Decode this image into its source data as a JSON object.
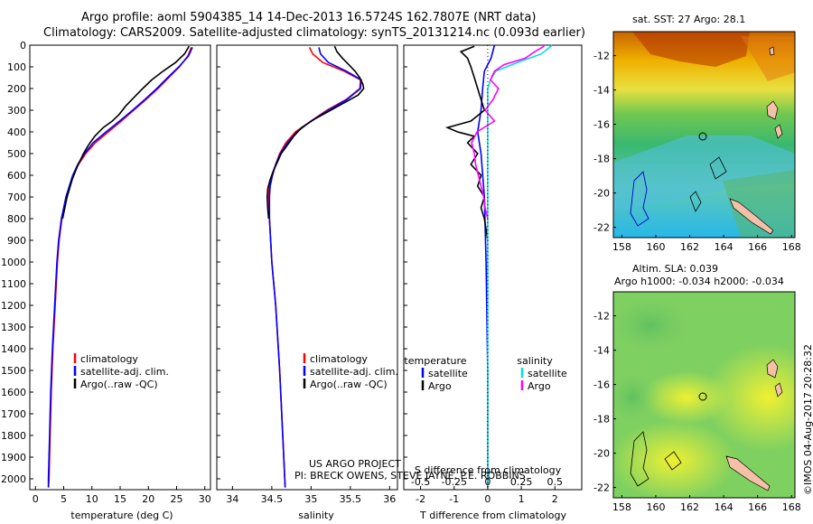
{
  "header": {
    "title_line1": "Argo profile: aoml 5904385_14 14-Dec-2013 16.5724S 162.7807E (NRT data)",
    "title_line2": "Climatology: CARS2009. Satellite-adjusted climatology: synTS_20131214.nc (0.093d earlier)"
  },
  "credits": {
    "project": "US ARGO PROJECT",
    "pi": "PI: BRECK OWENS, STEVE JAYNE, P.E. ROBBINS"
  },
  "timestamp": "©IMOS 04-Aug-2017 20:28:32",
  "colors": {
    "climatology": "#ff0000",
    "satellite": "#0000ff",
    "argo": "#000000",
    "salinity_satellite": "#00e0e0",
    "salinity_argo": "#ff00ff",
    "land": "#f4c0a8"
  },
  "chart_data": [
    {
      "id": "temperature",
      "type": "line",
      "xlabel": "temperature (deg C)",
      "ylabel": "",
      "xlim": [
        -1,
        31
      ],
      "ylim": [
        2050,
        0
      ],
      "xticks": [
        0,
        5,
        10,
        15,
        20,
        25,
        30
      ],
      "yticks": [
        0,
        100,
        200,
        300,
        400,
        500,
        600,
        700,
        800,
        900,
        1000,
        1100,
        1200,
        1300,
        1400,
        1500,
        1600,
        1700,
        1800,
        1900,
        2000
      ],
      "legend": [
        "climatology",
        "satellite-adj. clim.",
        "Argo(..raw -QC)"
      ],
      "legend_position": "lower-center",
      "series": [
        {
          "name": "climatology",
          "color": "#ff0000",
          "depth": [
            10,
            50,
            100,
            150,
            200,
            250,
            300,
            350,
            400,
            450,
            500,
            550,
            600,
            700,
            800,
            900,
            1000,
            1200,
            1400,
            1600,
            1800,
            2000,
            2040
          ],
          "values": [
            27.6,
            27.0,
            25.5,
            23.6,
            21.7,
            19.6,
            17.4,
            15.2,
            12.9,
            10.6,
            8.9,
            7.6,
            6.7,
            5.5,
            4.7,
            4.2,
            3.9,
            3.5,
            3.1,
            2.8,
            2.6,
            2.4,
            2.3
          ]
        },
        {
          "name": "satellite-adj. clim.",
          "color": "#0000ff",
          "depth": [
            10,
            50,
            100,
            150,
            200,
            250,
            300,
            350,
            400,
            450,
            500,
            550,
            600,
            700,
            800,
            900,
            1000,
            1200,
            1400,
            1600,
            1800,
            2000,
            2040
          ],
          "values": [
            27.8,
            27.1,
            25.4,
            23.4,
            21.5,
            19.4,
            17.2,
            14.9,
            12.5,
            10.2,
            8.7,
            7.5,
            6.6,
            5.4,
            4.6,
            4.1,
            3.8,
            3.4,
            3.0,
            2.7,
            2.5,
            2.3,
            2.3
          ]
        },
        {
          "name": "Argo(..raw -QC)",
          "color": "#000000",
          "depth": [
            5,
            40,
            80,
            120,
            160,
            200,
            240,
            280,
            320,
            350,
            380,
            420,
            460,
            500,
            560,
            620,
            700,
            800
          ],
          "values": [
            27.2,
            26.4,
            24.8,
            22.6,
            20.6,
            19.0,
            17.5,
            16.0,
            14.8,
            13.6,
            12.0,
            10.5,
            9.4,
            8.5,
            7.4,
            6.5,
            5.6,
            4.8
          ]
        }
      ]
    },
    {
      "id": "salinity",
      "type": "line",
      "xlabel": "salinity",
      "ylabel": "",
      "xlim": [
        33.8,
        36.1
      ],
      "ylim": [
        2050,
        0
      ],
      "xticks": [
        34,
        34.5,
        35,
        35.5,
        36
      ],
      "legend": [
        "climatology",
        "satellite-adj. clim.",
        "Argo(..raw -QC)"
      ],
      "legend_position": "lower-center",
      "series": [
        {
          "name": "climatology",
          "color": "#ff0000",
          "depth": [
            10,
            40,
            80,
            120,
            160,
            200,
            250,
            300,
            350,
            400,
            450,
            500,
            550,
            600,
            650,
            700,
            800,
            1000,
            1200,
            1500,
            1800,
            2040
          ],
          "values": [
            34.98,
            35.02,
            35.15,
            35.42,
            35.63,
            35.62,
            35.45,
            35.2,
            35.0,
            34.8,
            34.68,
            34.6,
            34.55,
            34.5,
            34.47,
            34.46,
            34.47,
            34.5,
            34.55,
            34.6,
            34.64,
            34.67
          ]
        },
        {
          "name": "satellite-adj. clim.",
          "color": "#0000ff",
          "depth": [
            10,
            40,
            80,
            120,
            160,
            200,
            250,
            300,
            350,
            400,
            450,
            500,
            550,
            600,
            650,
            700,
            800,
            1000,
            1200,
            1500,
            1800,
            2040
          ],
          "values": [
            35.1,
            35.12,
            35.22,
            35.45,
            35.64,
            35.63,
            35.46,
            35.22,
            35.0,
            34.82,
            34.7,
            34.61,
            34.55,
            34.51,
            34.48,
            34.47,
            34.47,
            34.5,
            34.55,
            34.6,
            34.64,
            34.67
          ]
        },
        {
          "name": "Argo(..raw -QC)",
          "color": "#000000",
          "depth": [
            5,
            30,
            60,
            90,
            120,
            150,
            180,
            200,
            230,
            260,
            300,
            340,
            380,
            420,
            460,
            500,
            540,
            580,
            620,
            660,
            700,
            760,
            800
          ],
          "values": [
            35.3,
            35.33,
            35.4,
            35.48,
            35.56,
            35.62,
            35.66,
            35.67,
            35.6,
            35.45,
            35.25,
            35.05,
            34.88,
            34.78,
            34.7,
            34.62,
            34.57,
            34.52,
            34.48,
            34.45,
            34.44,
            34.45,
            34.46
          ]
        }
      ]
    },
    {
      "id": "differences",
      "type": "line",
      "xlabel": "T difference from climatology",
      "xlabel_top": "S difference from climatology",
      "xlim": [
        -2.5,
        2.8
      ],
      "xticks": [
        -2,
        -1,
        0,
        1,
        2
      ],
      "s_xticks": [
        -0.5,
        -0.25,
        0,
        0.25,
        0.5
      ],
      "s_tick_labels": [
        "-0.5",
        "-0.25",
        "0",
        "0.25",
        "0.5"
      ],
      "ylim": [
        2050,
        0
      ],
      "legend": [
        "temperature",
        "satellite",
        "Argo",
        "salinity",
        "satellite",
        "Argo"
      ],
      "legend_position": "lower-center",
      "series": [
        {
          "name": "temperature satellite",
          "color": "#0000ff",
          "depth": [
            0,
            60,
            120,
            200,
            300,
            400,
            500,
            700,
            1000,
            1500,
            2040
          ],
          "values": [
            0.2,
            0.1,
            -0.1,
            -0.15,
            -0.2,
            -0.3,
            -0.2,
            -0.1,
            -0.05,
            0.0,
            0.0
          ]
        },
        {
          "name": "temperature Argo",
          "color": "#000000",
          "depth": [
            5,
            30,
            60,
            100,
            150,
            200,
            250,
            300,
            350,
            380,
            400,
            420,
            450,
            500,
            550,
            600,
            650,
            700,
            750,
            800,
            850,
            900
          ],
          "values": [
            -0.4,
            -0.8,
            -0.6,
            -0.5,
            -0.4,
            -0.3,
            -0.2,
            -0.1,
            -0.5,
            -1.2,
            -0.9,
            -0.4,
            -0.6,
            -0.3,
            -0.5,
            -0.2,
            -0.3,
            -0.1,
            -0.2,
            -0.1,
            -0.05,
            0.0
          ]
        },
        {
          "name": "salinity satellite",
          "color": "#00e0e0",
          "depth": [
            0,
            40,
            80,
            120,
            160,
            200,
            300,
            500,
            800,
            1200,
            2040
          ],
          "values": [
            0.48,
            0.4,
            0.22,
            0.06,
            0.02,
            0.0,
            0.0,
            0.0,
            0.0,
            0.0,
            0.0
          ]
        },
        {
          "name": "salinity Argo",
          "color": "#ff00ff",
          "depth": [
            5,
            30,
            60,
            90,
            120,
            160,
            200,
            250,
            300,
            350,
            400,
            450,
            500,
            550,
            600,
            650,
            700,
            750,
            800
          ],
          "values": [
            0.42,
            0.35,
            0.28,
            0.12,
            0.05,
            0.02,
            0.08,
            0.04,
            -0.02,
            0.05,
            -0.08,
            -0.12,
            -0.1,
            -0.09,
            -0.07,
            -0.05,
            -0.03,
            -0.02,
            0.0
          ]
        }
      ]
    },
    {
      "id": "sst-map",
      "type": "heatmap",
      "title": "sat. SST: 27 Argo: 28.1",
      "xlim": [
        157.5,
        168.2
      ],
      "ylim": [
        -22.6,
        -10.6
      ],
      "xticks": [
        158,
        160,
        162,
        164,
        166,
        168
      ],
      "yticks": [
        -12,
        -14,
        -16,
        -18,
        -20,
        -22
      ],
      "float_marker": {
        "lon": 162.78,
        "lat": -16.57
      }
    },
    {
      "id": "sla-map",
      "type": "heatmap",
      "title": "Altim. SLA: 0.039",
      "subtitle": "Argo h1000: -0.034 h2000: -0.034",
      "xlim": [
        157.5,
        168.2
      ],
      "ylim": [
        -22.6,
        -10.6
      ],
      "xticks": [
        158,
        160,
        162,
        164,
        166,
        168
      ],
      "yticks": [
        -12,
        -14,
        -16,
        -18,
        -20,
        -22
      ],
      "float_marker": {
        "lon": 162.78,
        "lat": -16.57
      }
    }
  ]
}
